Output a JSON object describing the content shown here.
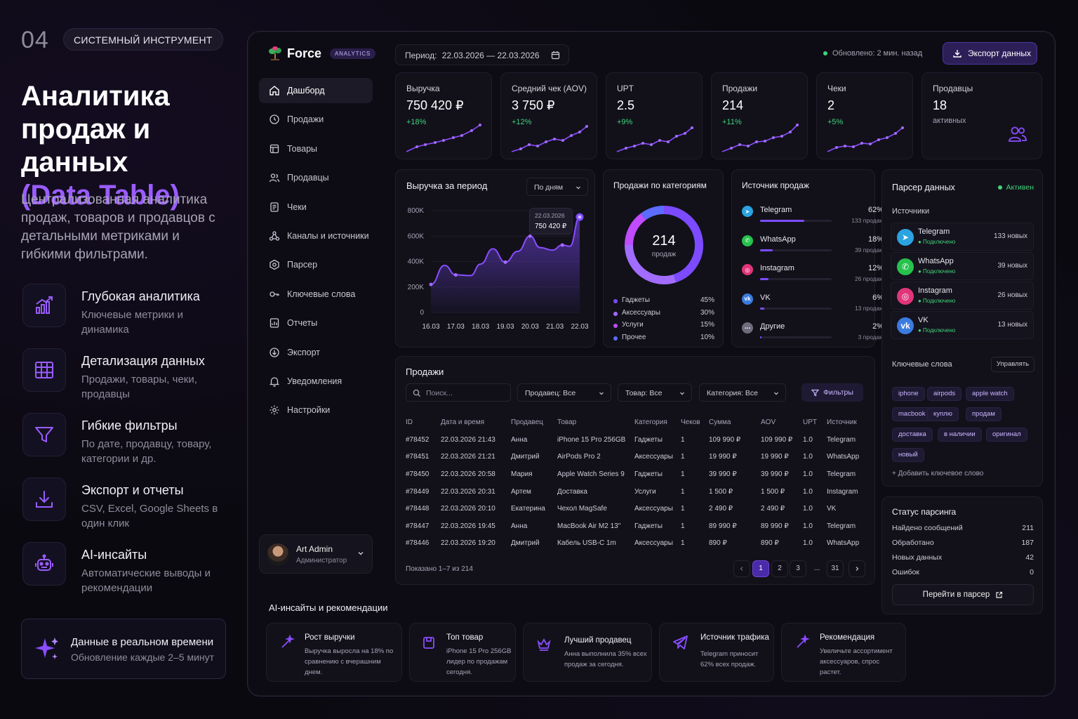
{
  "promo": {
    "number": "04",
    "tag": "СИСТЕМНЫЙ ИНСТРУМЕНТ",
    "title_line1": "Аналитика",
    "title_line2": "продаж и данных",
    "title_accent": "(Data Table)",
    "lead": "Централизованная аналитика продаж, товаров и продавцов с детальными метриками и гибкими фильтрами.",
    "features": [
      {
        "title": "Глубокая аналитика",
        "desc": "Ключевые метрики и динамика",
        "icon": "chart-up-icon"
      },
      {
        "title": "Детализация данных",
        "desc": "Продажи, товары, чеки, продавцы",
        "icon": "grid-table-icon"
      },
      {
        "title": "Гибкие фильтры",
        "desc": "По дате, продавцу, товару, категории и др.",
        "icon": "filter-icon"
      },
      {
        "title": "Экспорт и отчеты",
        "desc": "CSV, Excel, Google Sheets в один клик",
        "icon": "download-icon"
      },
      {
        "title": "AI-инсайты",
        "desc": "Автоматические выводы и рекомендации",
        "icon": "robot-icon"
      }
    ],
    "realtime_title": "Данные в реальном времени",
    "realtime_desc": "Обновление каждые 2–5 минут"
  },
  "app": {
    "brand": "Force",
    "brand_badge": "ANALYTICS",
    "period_label": "Период:",
    "period_value": "22.03.2026 — 22.03.2026",
    "updated": "Обновлено: 2 мин. назад",
    "export_button": "Экспорт данных",
    "nav": [
      {
        "label": "Дашборд",
        "icon": "home-icon",
        "active": true
      },
      {
        "label": "Продажи",
        "icon": "clock-icon"
      },
      {
        "label": "Товары",
        "icon": "box-icon"
      },
      {
        "label": "Продавцы",
        "icon": "users-icon"
      },
      {
        "label": "Чеки",
        "icon": "receipt-icon"
      },
      {
        "label": "Каналы и источники",
        "icon": "network-icon"
      },
      {
        "label": "Парсер",
        "icon": "parser-icon"
      },
      {
        "label": "Ключевые слова",
        "icon": "key-icon"
      },
      {
        "label": "Отчеты",
        "icon": "report-icon"
      },
      {
        "label": "Экспорт",
        "icon": "export-icon"
      },
      {
        "label": "Уведомления",
        "icon": "bell-icon"
      },
      {
        "label": "Настройки",
        "icon": "gear-icon"
      }
    ],
    "user": {
      "name": "Art Admin",
      "role": "Администратор"
    }
  },
  "kpis": [
    {
      "label": "Выручка",
      "value": "750 420 ₽",
      "delta": "+18%"
    },
    {
      "label": "Средний чек (AOV)",
      "value": "3 750 ₽",
      "delta": "+12%"
    },
    {
      "label": "UPT",
      "value": "2.5",
      "delta": "+9%"
    },
    {
      "label": "Продажи",
      "value": "214",
      "delta": "+11%"
    },
    {
      "label": "Чеки",
      "value": "2",
      "delta": "+5%"
    },
    {
      "label": "Продавцы",
      "value": "18",
      "sub": "активных"
    }
  ],
  "revenue_chart": {
    "title": "Выручка за период",
    "select": "По дням",
    "tooltip_date": "22.03.2026",
    "tooltip_value": "750 420 ₽"
  },
  "chart_data": {
    "type": "area",
    "categories": [
      "16.03",
      "17.03",
      "18.03",
      "19.03",
      "20.03",
      "21.03",
      "22.03"
    ],
    "series": [
      {
        "values": [
          220,
          370,
          295,
          290,
          380,
          500,
          395,
          480,
          600,
          510,
          490,
          530,
          520,
          750
        ]
      }
    ],
    "x": [
      0,
      0.55,
      1,
      1.6,
      2,
      2.5,
      3,
      3.5,
      4,
      4.4,
      4.9,
      5.3,
      5.6,
      6
    ],
    "yticks": [
      "800K",
      "600K",
      "400K",
      "200K",
      "0"
    ],
    "ylim": [
      0,
      800
    ]
  },
  "categories_card": {
    "title": "Продажи по категориям",
    "center_value": "214",
    "center_label": "продаж",
    "items": [
      {
        "name": "Гаджеты",
        "pct": "45%",
        "value": 45,
        "color": "#7c4bff"
      },
      {
        "name": "Аксессуары",
        "pct": "30%",
        "value": 30,
        "color": "#a26cff"
      },
      {
        "name": "Услуги",
        "pct": "15%",
        "value": 15,
        "color": "#c04bff"
      },
      {
        "name": "Прочее",
        "pct": "10%",
        "value": 10,
        "color": "#5b6cff"
      }
    ]
  },
  "sources_card": {
    "title": "Источник продаж",
    "items": [
      {
        "name": "Telegram",
        "pct": "62%",
        "value": 62,
        "sub": "133 продаж",
        "icon": "telegram-icon"
      },
      {
        "name": "WhatsApp",
        "pct": "18%",
        "value": 18,
        "sub": "39 продаж",
        "icon": "whatsapp-icon"
      },
      {
        "name": "Instagram",
        "pct": "12%",
        "value": 12,
        "sub": "26 продаж",
        "icon": "instagram-icon"
      },
      {
        "name": "VK",
        "pct": "6%",
        "value": 6,
        "sub": "13 продаж",
        "icon": "vk-icon"
      },
      {
        "name": "Другие",
        "pct": "2%",
        "value": 2,
        "sub": "3 продаж",
        "icon": "more-icon"
      }
    ]
  },
  "parser": {
    "title": "Парсер данных",
    "status": "Активен",
    "sources_label": "Источники",
    "sources": [
      {
        "name": "Telegram",
        "status": "Подключено",
        "count": "133 новых",
        "color": "#2aa3e0"
      },
      {
        "name": "WhatsApp",
        "status": "Подключено",
        "count": "39 новых",
        "color": "#27c24c"
      },
      {
        "name": "Instagram",
        "status": "Подключено",
        "count": "26 новых",
        "color": "#e0357a"
      },
      {
        "name": "VK",
        "status": "Подключено",
        "count": "13 новых",
        "color": "#3a7be0"
      }
    ],
    "keywords_label": "Ключевые слова",
    "manage": "Управлять",
    "keywords": [
      "iphone",
      "airpods",
      "apple watch",
      "macbook",
      "куплю",
      "продам",
      "доставка",
      "в наличии",
      "оригинал",
      "новый"
    ],
    "add_keyword": "+ Добавить ключевое слово"
  },
  "parse_status": {
    "title": "Статус парсинга",
    "rows": [
      {
        "label": "Найдено сообщений",
        "value": "211"
      },
      {
        "label": "Обработано",
        "value": "187"
      },
      {
        "label": "Новых данных",
        "value": "42"
      },
      {
        "label": "Ошибок",
        "value": "0"
      }
    ],
    "button": "Перейти в парсер"
  },
  "sales": {
    "title": "Продажи",
    "search_placeholder": "Поиск...",
    "filter_seller": "Продавец: Все",
    "filter_product": "Товар: Все",
    "filter_category": "Категория: Все",
    "filters_button": "Фильтры",
    "columns": [
      "ID",
      "Дата и время",
      "Продавец",
      "Товар",
      "Категория",
      "Чеков",
      "Сумма",
      "AOV",
      "UPT",
      "Источник"
    ],
    "rows": [
      [
        "#78452",
        "22.03.2026 21:43",
        "Анна",
        "iPhone 15 Pro 256GB",
        "Гаджеты",
        "1",
        "109 990 ₽",
        "109 990 ₽",
        "1.0",
        "Telegram"
      ],
      [
        "#78451",
        "22.03.2026 21:21",
        "Дмитрий",
        "AirPods Pro 2",
        "Аксессуары",
        "1",
        "19 990 ₽",
        "19 990 ₽",
        "1.0",
        "WhatsApp"
      ],
      [
        "#78450",
        "22.03.2026 20:58",
        "Мария",
        "Apple Watch Series 9",
        "Гаджеты",
        "1",
        "39 990 ₽",
        "39 990 ₽",
        "1.0",
        "Telegram"
      ],
      [
        "#78449",
        "22.03.2026 20:31",
        "Артем",
        "Доставка",
        "Услуги",
        "1",
        "1 500 ₽",
        "1 500 ₽",
        "1.0",
        "Instagram"
      ],
      [
        "#78448",
        "22.03.2026 20:10",
        "Екатерина",
        "Чехол MagSafe",
        "Аксессуары",
        "1",
        "2 490 ₽",
        "2 490 ₽",
        "1.0",
        "VK"
      ],
      [
        "#78447",
        "22.03.2026 19:45",
        "Анна",
        "MacBook Air M2 13\"",
        "Гаджеты",
        "1",
        "89 990 ₽",
        "89 990 ₽",
        "1.0",
        "Telegram"
      ],
      [
        "#78446",
        "22.03.2026 19:20",
        "Дмитрий",
        "Кабель USB-C 1m",
        "Аксессуары",
        "1",
        "890 ₽",
        "890 ₽",
        "1.0",
        "WhatsApp"
      ]
    ],
    "shown": "Показано 1–7 из 214",
    "pages": [
      "1",
      "2",
      "3",
      "...",
      "31"
    ]
  },
  "ai": {
    "title": "AI-инсайты и рекомендации",
    "cards": [
      {
        "title": "Рост выручки",
        "desc": "Выручка выросла на 18% по сравнению с вчерашним днем."
      },
      {
        "title": "Топ товар",
        "desc": "iPhone 15 Pro 256GB лидер по продажам сегодня."
      },
      {
        "title": "Лучший продавец",
        "desc": "Анна выполнила 35% всех продаж за сегодня."
      },
      {
        "title": "Источник трафика",
        "desc": "Telegram приносит 62% всех продаж."
      },
      {
        "title": "Рекомендация",
        "desc": "Увеличьте ассортимент аксессуаров, спрос растет."
      }
    ]
  }
}
